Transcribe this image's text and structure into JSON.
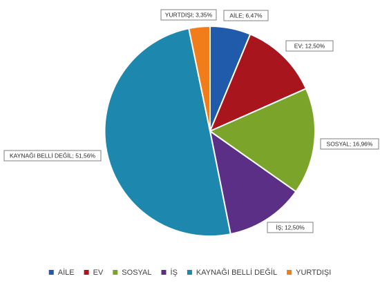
{
  "chart_data": {
    "type": "pie",
    "title": "",
    "categories": [
      "AİLE",
      "EV",
      "SOSYAL",
      "İŞ",
      "KAYNAĞI BELLİ DEĞİL",
      "YURTDIŞI"
    ],
    "values": [
      6.47,
      12.5,
      16.96,
      12.5,
      51.56,
      3.35
    ],
    "data_labels": [
      "AİLE; 6,47%",
      "EV; 12,50%",
      "SOSYAL; 16,96%",
      "İŞ; 12,50%",
      "KAYNAĞI BELLİ DEĞİL; 51,56%",
      "YURTDIŞI; 3,35%"
    ],
    "colors": [
      "#1f5aab",
      "#a8151c",
      "#7ba52a",
      "#5b2f86",
      "#1e87ad",
      "#f07c1a"
    ],
    "start_angle_deg": 0,
    "direction": "clockwise",
    "legend": {
      "position": "bottom",
      "marker": "square"
    }
  }
}
